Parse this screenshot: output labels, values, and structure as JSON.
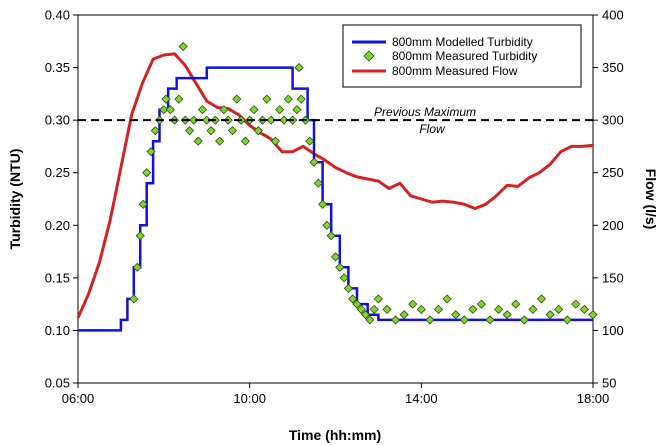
{
  "chart_data": {
    "type": "line",
    "xlabel": "Time (hh:mm)",
    "ylabel_left": "Turbidity (NTU)",
    "ylabel_right": "Flow (l/s)",
    "x_ticks": [
      "06:00",
      "10:00",
      "14:00",
      "18:00"
    ],
    "x_range_hours": [
      6,
      18
    ],
    "y_left_ticks": [
      "0.05",
      "0.10",
      "0.15",
      "0.20",
      "0.25",
      "0.30",
      "0.35",
      "0.40"
    ],
    "y_left_range": [
      0.05,
      0.4
    ],
    "y_right_ticks": [
      "50",
      "100",
      "150",
      "200",
      "250",
      "300",
      "350",
      "400"
    ],
    "y_right_range": [
      50,
      400
    ],
    "grid": false,
    "legend_position": "top-right",
    "colors": {
      "modelled": "#1010e0",
      "measured_turbidity": "#7fd62a",
      "measured_flow": "#d42222",
      "threshold": "#000000"
    },
    "annotation": {
      "line1": "Previous Maximum",
      "line2": "Flow",
      "value": 300
    },
    "series": [
      {
        "name": "800mm Modelled Turbidity",
        "axis": "left",
        "style": "step",
        "x": [
          6.0,
          7.0,
          7.0,
          7.15,
          7.15,
          7.3,
          7.3,
          7.45,
          7.45,
          7.6,
          7.6,
          7.75,
          7.75,
          7.9,
          7.9,
          8.1,
          8.1,
          8.3,
          8.3,
          9.0,
          9.0,
          11.0,
          11.0,
          11.35,
          11.35,
          11.5,
          11.5,
          11.7,
          11.7,
          11.9,
          11.9,
          12.1,
          12.1,
          12.3,
          12.3,
          12.5,
          12.5,
          12.75,
          12.75,
          13.0,
          13.0,
          18.0
        ],
        "y": [
          0.1,
          0.1,
          0.11,
          0.11,
          0.13,
          0.13,
          0.16,
          0.16,
          0.2,
          0.2,
          0.24,
          0.24,
          0.28,
          0.28,
          0.31,
          0.31,
          0.33,
          0.33,
          0.34,
          0.34,
          0.35,
          0.35,
          0.33,
          0.33,
          0.3,
          0.3,
          0.26,
          0.26,
          0.22,
          0.22,
          0.19,
          0.19,
          0.16,
          0.16,
          0.14,
          0.14,
          0.125,
          0.125,
          0.115,
          0.115,
          0.11,
          0.11
        ]
      },
      {
        "name": "800mm Measured Turbidity",
        "axis": "left",
        "style": "scatter",
        "x": [
          7.3,
          7.38,
          7.45,
          7.52,
          7.6,
          7.7,
          7.8,
          7.9,
          8.0,
          8.05,
          8.15,
          8.25,
          8.35,
          8.45,
          8.5,
          8.6,
          8.7,
          8.8,
          8.9,
          9.0,
          9.1,
          9.2,
          9.3,
          9.4,
          9.5,
          9.6,
          9.7,
          9.8,
          9.9,
          10.0,
          10.1,
          10.2,
          10.3,
          10.4,
          10.5,
          10.6,
          10.7,
          10.8,
          10.9,
          11.0,
          11.1,
          11.15,
          11.2,
          11.3,
          11.4,
          11.5,
          11.6,
          11.7,
          11.8,
          11.9,
          12.0,
          12.1,
          12.2,
          12.3,
          12.4,
          12.5,
          12.6,
          12.7,
          12.8,
          12.9,
          13.0,
          13.2,
          13.4,
          13.6,
          13.8,
          14.0,
          14.2,
          14.4,
          14.6,
          14.8,
          15.0,
          15.2,
          15.4,
          15.6,
          15.8,
          16.0,
          16.2,
          16.4,
          16.6,
          16.8,
          17.0,
          17.2,
          17.4,
          17.6,
          17.8,
          18.0
        ],
        "y": [
          0.13,
          0.16,
          0.19,
          0.22,
          0.25,
          0.27,
          0.29,
          0.3,
          0.31,
          0.32,
          0.31,
          0.3,
          0.32,
          0.37,
          0.3,
          0.29,
          0.3,
          0.28,
          0.31,
          0.3,
          0.29,
          0.3,
          0.28,
          0.31,
          0.3,
          0.29,
          0.32,
          0.3,
          0.28,
          0.3,
          0.31,
          0.29,
          0.3,
          0.32,
          0.3,
          0.28,
          0.31,
          0.3,
          0.32,
          0.3,
          0.31,
          0.35,
          0.32,
          0.3,
          0.28,
          0.26,
          0.24,
          0.22,
          0.2,
          0.19,
          0.17,
          0.16,
          0.15,
          0.14,
          0.13,
          0.125,
          0.12,
          0.115,
          0.11,
          0.12,
          0.13,
          0.12,
          0.11,
          0.115,
          0.125,
          0.12,
          0.11,
          0.12,
          0.13,
          0.115,
          0.11,
          0.12,
          0.125,
          0.11,
          0.12,
          0.115,
          0.125,
          0.11,
          0.12,
          0.13,
          0.115,
          0.12,
          0.11,
          0.125,
          0.12,
          0.115
        ]
      },
      {
        "name": "800mm Measured Flow",
        "axis": "right",
        "style": "line",
        "x": [
          6.0,
          6.25,
          6.5,
          6.75,
          7.0,
          7.25,
          7.5,
          7.75,
          8.0,
          8.25,
          8.5,
          8.75,
          9.0,
          9.25,
          9.5,
          9.75,
          10.0,
          10.25,
          10.5,
          10.75,
          11.0,
          11.25,
          11.5,
          11.75,
          12.0,
          12.25,
          12.5,
          12.75,
          13.0,
          13.25,
          13.5,
          13.75,
          14.0,
          14.25,
          14.5,
          14.75,
          15.0,
          15.25,
          15.5,
          15.75,
          16.0,
          16.25,
          16.5,
          16.75,
          17.0,
          17.25,
          17.5,
          17.75,
          18.0
        ],
        "y": [
          112,
          135,
          165,
          205,
          255,
          305,
          335,
          358,
          362,
          363,
          352,
          335,
          318,
          312,
          311,
          305,
          295,
          288,
          282,
          270,
          270,
          275,
          268,
          262,
          255,
          250,
          246,
          244,
          242,
          235,
          240,
          228,
          225,
          222,
          223,
          222,
          220,
          216,
          220,
          228,
          238,
          237,
          245,
          250,
          258,
          270,
          275,
          275,
          276
        ]
      }
    ]
  }
}
